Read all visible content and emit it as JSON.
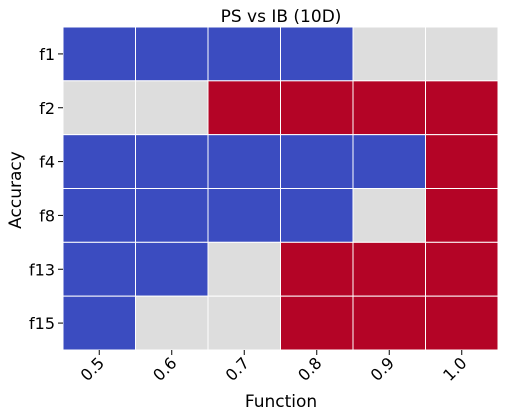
{
  "chart_data": {
    "type": "heatmap",
    "title": "PS vs IB (10D)",
    "xlabel": "Function",
    "ylabel": "Accuracy",
    "x_categories": [
      "0.5",
      "0.6",
      "0.7",
      "0.8",
      "0.9",
      "1.0"
    ],
    "y_categories": [
      "f1",
      "f2",
      "f4",
      "f8",
      "f13",
      "f15"
    ],
    "values": [
      [
        -1,
        -1,
        -1,
        -1,
        0,
        0
      ],
      [
        0,
        0,
        1,
        1,
        1,
        1
      ],
      [
        -1,
        -1,
        -1,
        -1,
        -1,
        1
      ],
      [
        -1,
        -1,
        -1,
        -1,
        0,
        1
      ],
      [
        -1,
        -1,
        0,
        1,
        1,
        1
      ],
      [
        -1,
        0,
        0,
        1,
        1,
        1
      ]
    ],
    "value_colors": {
      "-1": "#3b4cc0",
      "0": "#dddddd",
      "1": "#b40426"
    },
    "colorbar": false
  }
}
